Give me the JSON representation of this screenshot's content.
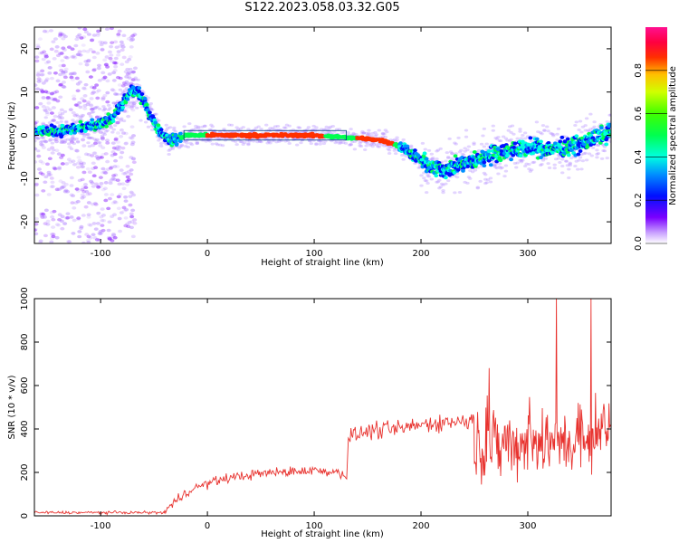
{
  "title": "S122.2023.058.03.32.G05",
  "chart_data": [
    {
      "type": "heatmap",
      "xlabel": "Height of straight line (km)",
      "ylabel": "Frequency (Hz)",
      "xlim": [
        -162,
        378
      ],
      "ylim": [
        -25,
        25
      ],
      "xticks": [
        -100,
        0,
        100,
        200,
        300
      ],
      "yticks": [
        -20,
        -10,
        0,
        10,
        20
      ],
      "colorbar": {
        "label": "Normalized spectral amplitude",
        "range": [
          0.0,
          1.0
        ],
        "ticks": [
          "0.0",
          "0.2",
          "0.4",
          "0.6",
          "0.8"
        ],
        "tick_values": [
          0.0,
          0.2,
          0.4,
          0.6,
          0.8
        ],
        "colormap": "gist_rainbow"
      },
      "ridge": {
        "x": [
          -160,
          -140,
          -120,
          -100,
          -90,
          -80,
          -72,
          -65,
          -58,
          -50,
          -42,
          -35,
          -28,
          -20,
          0,
          50,
          100,
          130,
          160,
          175,
          190,
          200,
          210,
          220,
          235,
          250,
          270,
          300,
          330,
          350,
          378
        ],
        "y": [
          1,
          1,
          1.5,
          2.5,
          4,
          7,
          10,
          10,
          7,
          3,
          0,
          -1,
          -1,
          0,
          0,
          0,
          0,
          -0.5,
          -1,
          -2,
          -4,
          -6,
          -7.5,
          -8,
          -7,
          -6,
          -4,
          -3,
          -3,
          -2,
          1
        ]
      },
      "grid": false
    },
    {
      "type": "line",
      "xlabel": "Height of straight line (km)",
      "ylabel": "SNR (10 * v/v)",
      "xlim": [
        -162,
        378
      ],
      "ylim": [
        0,
        1000
      ],
      "xticks": [
        -100,
        0,
        100,
        200,
        300
      ],
      "yticks": [
        0,
        200,
        400,
        600,
        800,
        1000
      ],
      "series": [
        {
          "color": "#e8322e",
          "segments": [
            {
              "x": [
                -162,
                -100,
                -60,
                -40
              ],
              "base": 15,
              "noise": 10
            },
            {
              "x": [
                -40,
                -20,
                0,
                20,
                50,
                80,
                100,
                125,
                131
              ],
              "base": [
                20,
                110,
                150,
                175,
                195,
                205,
                210,
                200,
                180
              ],
              "noise": 35
            },
            {
              "x": [
                132,
                150,
                180,
                200,
                220,
                250
              ],
              "base": [
                360,
                390,
                400,
                420,
                430,
                440
              ],
              "noise": 60
            },
            {
              "x": [
                250,
                280,
                300,
                330,
                360,
                378
              ],
              "base": [
                330,
                330,
                340,
                340,
                350,
                360
              ],
              "noise": 230
            }
          ],
          "peaks": [
            {
              "x": 327,
              "y": 1000
            },
            {
              "x": 359,
              "y": 1000
            },
            {
              "x": 264,
              "y": 680
            }
          ]
        }
      ],
      "grid": false
    }
  ]
}
